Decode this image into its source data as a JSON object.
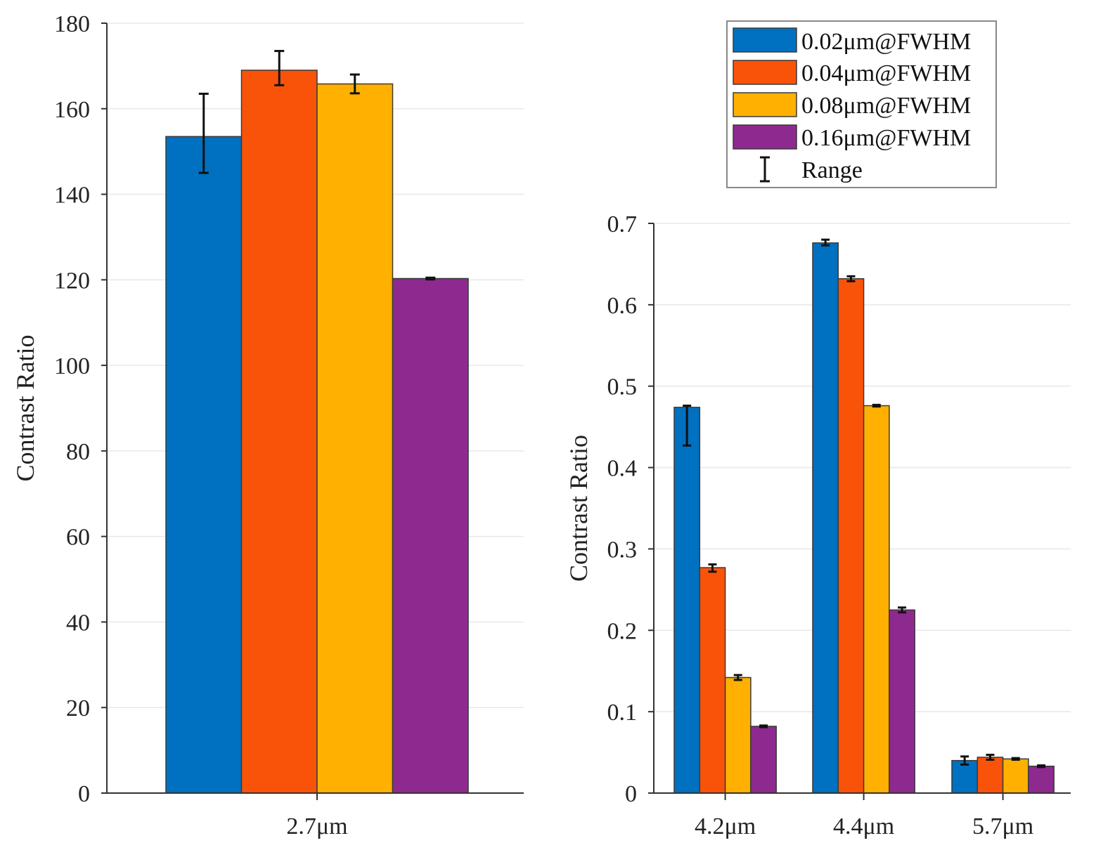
{
  "chart_data": [
    {
      "type": "bar",
      "title": "",
      "xlabel": "",
      "ylabel": "Contrast Ratio",
      "ylim": [
        0,
        180
      ],
      "yticks": [
        0,
        20,
        40,
        60,
        80,
        100,
        120,
        140,
        160,
        180
      ],
      "categories": [
        "2.7μm"
      ],
      "grid": true,
      "series": [
        {
          "name": "0.02μm@FWHM",
          "values": [
            153.5
          ],
          "range": [
            [
              145,
              163.5
            ]
          ]
        },
        {
          "name": "0.04μm@FWHM",
          "values": [
            169
          ],
          "range": [
            [
              165.5,
              173.5
            ]
          ]
        },
        {
          "name": "0.08μm@FWHM",
          "values": [
            165.8
          ],
          "range": [
            [
              163.6,
              168
            ]
          ]
        },
        {
          "name": "0.16μm@FWHM",
          "values": [
            120.3
          ],
          "range": [
            [
              120.1,
              120.5
            ]
          ]
        }
      ]
    },
    {
      "type": "bar",
      "title": "",
      "xlabel": "",
      "ylabel": "Contrast Ratio",
      "ylim": [
        0,
        0.7
      ],
      "yticks": [
        0,
        0.1,
        0.2,
        0.3,
        0.4,
        0.5,
        0.6,
        0.7
      ],
      "categories": [
        "4.2μm",
        "4.4μm",
        "5.7μm"
      ],
      "grid": true,
      "series": [
        {
          "name": "0.02μm@FWHM",
          "values": [
            0.474,
            0.676,
            0.04
          ],
          "range": [
            [
              0.427,
              0.476
            ],
            [
              0.673,
              0.68
            ],
            [
              0.035,
              0.045
            ]
          ]
        },
        {
          "name": "0.04μm@FWHM",
          "values": [
            0.277,
            0.632,
            0.044
          ],
          "range": [
            [
              0.272,
              0.281
            ],
            [
              0.629,
              0.635
            ],
            [
              0.041,
              0.047
            ]
          ]
        },
        {
          "name": "0.08μm@FWHM",
          "values": [
            0.142,
            0.476,
            0.042
          ],
          "range": [
            [
              0.139,
              0.145
            ],
            [
              0.475,
              0.477
            ],
            [
              0.041,
              0.043
            ]
          ]
        },
        {
          "name": "0.16μm@FWHM",
          "values": [
            0.082,
            0.225,
            0.033
          ],
          "range": [
            [
              0.081,
              0.083
            ],
            [
              0.222,
              0.228
            ],
            [
              0.032,
              0.034
            ]
          ]
        }
      ]
    }
  ],
  "legend": {
    "position": "top-right",
    "items": [
      {
        "label": "0.02μm@FWHM",
        "color": "#0070C0"
      },
      {
        "label": "0.04μm@FWHM",
        "color": "#F9530A"
      },
      {
        "label": "0.08μm@FWHM",
        "color": "#FFB000"
      },
      {
        "label": "0.16μm@FWHM",
        "color": "#8E2A8F"
      }
    ],
    "range_label": "Range"
  },
  "colors": {
    "grid": "#e8e8e8",
    "axis": "#333333",
    "bar_outline": "#3a3a3a",
    "error_bar": "#111111"
  }
}
